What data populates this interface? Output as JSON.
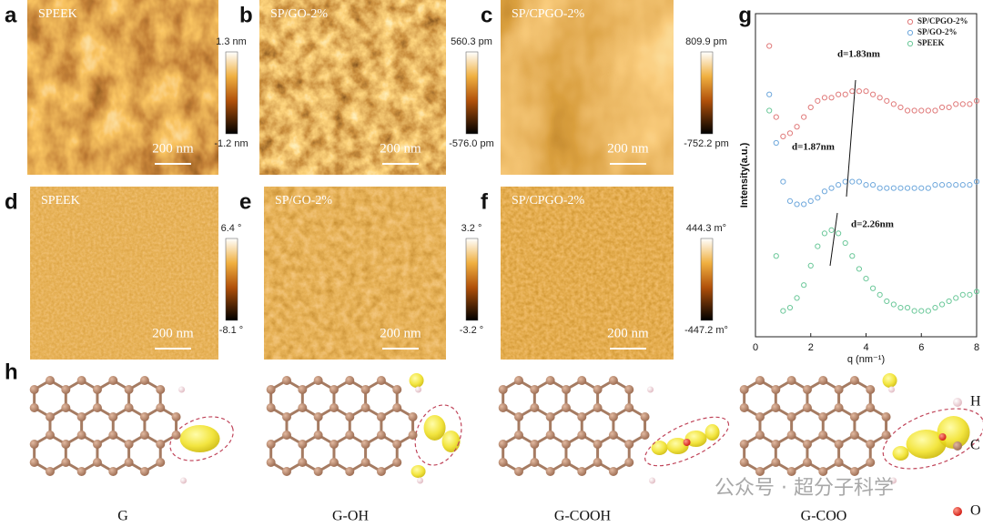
{
  "panels": [
    {
      "letter": "a",
      "sample": "SPEEK",
      "scale": "200 nm",
      "colorbar": [
        "1.3 nm",
        "-1.2 nm"
      ]
    },
    {
      "letter": "b",
      "sample": "SP/GO-2%",
      "scale": "200 nm",
      "colorbar": [
        "560.3 pm",
        "-576.0 pm"
      ]
    },
    {
      "letter": "c",
      "sample": "SP/CPGO-2%",
      "scale": "200 nm",
      "colorbar": [
        "809.9 pm",
        "-752.2 pm"
      ]
    },
    {
      "letter": "d",
      "sample": "SPEEK",
      "scale": "200 nm",
      "colorbar": [
        "6.4 °",
        "-8.1 °"
      ]
    },
    {
      "letter": "e",
      "sample": "SP/GO-2%",
      "scale": "200 nm",
      "colorbar": [
        "3.2 °",
        "-3.2 °"
      ]
    },
    {
      "letter": "f",
      "sample": "SP/CPGO-2%",
      "scale": "200 nm",
      "colorbar": [
        "444.3 m°",
        "-447.2 m°"
      ]
    }
  ],
  "chart_data": {
    "type": "scatter",
    "panel": "g",
    "xlabel": "q (nm⁻¹)",
    "ylabel": "Intensity(a.u.)",
    "xlim": [
      0,
      8
    ],
    "xticks": [
      0,
      2,
      4,
      6,
      8
    ],
    "ylim": [
      0,
      10
    ],
    "legend": "upper right",
    "x": [
      0.5,
      0.75,
      1.0,
      1.25,
      1.5,
      1.75,
      2.0,
      2.25,
      2.5,
      2.75,
      3.0,
      3.25,
      3.5,
      3.75,
      4.0,
      4.25,
      4.5,
      4.75,
      5.0,
      5.25,
      5.5,
      5.75,
      6.0,
      6.25,
      6.5,
      6.75,
      7.0,
      7.25,
      7.5,
      7.75,
      8.0
    ],
    "series": [
      {
        "name": "SP/CPGO-2%",
        "color": "#e07a7a",
        "values": [
          9.0,
          6.8,
          6.2,
          6.3,
          6.5,
          6.8,
          7.1,
          7.3,
          7.4,
          7.4,
          7.5,
          7.5,
          7.6,
          7.6,
          7.6,
          7.5,
          7.4,
          7.3,
          7.2,
          7.1,
          7.0,
          7.0,
          7.0,
          7.0,
          7.0,
          7.1,
          7.1,
          7.2,
          7.2,
          7.2,
          7.3
        ]
      },
      {
        "name": "SP/GO-2%",
        "color": "#6fa8dc",
        "values": [
          7.5,
          6.0,
          4.8,
          4.2,
          4.1,
          4.1,
          4.2,
          4.3,
          4.5,
          4.6,
          4.7,
          4.8,
          4.8,
          4.8,
          4.7,
          4.7,
          4.6,
          4.6,
          4.6,
          4.6,
          4.6,
          4.6,
          4.6,
          4.6,
          4.7,
          4.7,
          4.7,
          4.7,
          4.7,
          4.7,
          4.8
        ]
      },
      {
        "name": "SPEEK",
        "color": "#6cc89a",
        "values": [
          7.0,
          2.5,
          0.8,
          0.9,
          1.2,
          1.6,
          2.2,
          2.8,
          3.2,
          3.3,
          3.2,
          2.9,
          2.5,
          2.1,
          1.8,
          1.5,
          1.3,
          1.1,
          1.0,
          0.9,
          0.9,
          0.8,
          0.8,
          0.8,
          0.9,
          1.0,
          1.1,
          1.2,
          1.3,
          1.3,
          1.4
        ]
      }
    ],
    "annotations": [
      "d=1.83nm",
      "d=1.87nm",
      "d=2.26nm"
    ]
  },
  "structures": {
    "letter": "h",
    "labels": [
      "G",
      "G-OH",
      "G-COOH",
      "G-COO"
    ],
    "legend": [
      "H",
      "C",
      "O"
    ]
  },
  "watermark": "公众号 · 超分子科学"
}
